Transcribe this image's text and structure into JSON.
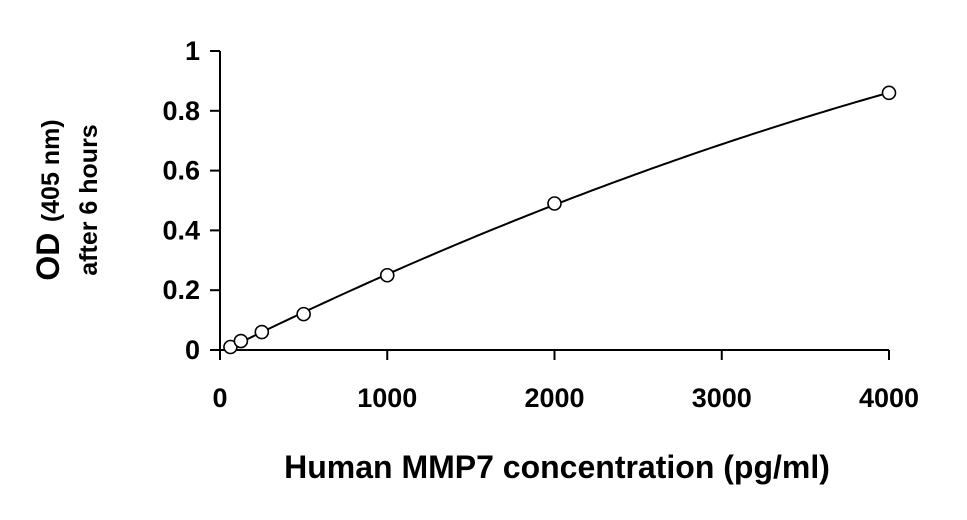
{
  "chart_data": {
    "type": "scatter",
    "title": "",
    "xlabel": "Human MMP7 concentration (pg/ml)",
    "ylabel_main": "OD",
    "ylabel_unit": "(405 nm)",
    "ylabel_line2": "after 6 hours",
    "xlim": [
      0,
      4000
    ],
    "ylim": [
      0,
      1
    ],
    "x_ticks": [
      0,
      1000,
      2000,
      3000,
      4000
    ],
    "x_tick_labels": [
      "0",
      "1000",
      "2000",
      "3000",
      "4000"
    ],
    "y_ticks": [
      0,
      0.2,
      0.4,
      0.6,
      0.8,
      1
    ],
    "y_tick_labels": [
      "0",
      "0.2",
      "0.4",
      "0.6",
      "0.8",
      "1"
    ],
    "grid": false,
    "legend": "none",
    "series": [
      {
        "marker": "open-circle",
        "line": "smooth-fit",
        "x": [
          62.5,
          125,
          250,
          500,
          1000,
          2000,
          4000
        ],
        "y": [
          0.01,
          0.03,
          0.06,
          0.12,
          0.25,
          0.49,
          0.86
        ]
      }
    ]
  }
}
